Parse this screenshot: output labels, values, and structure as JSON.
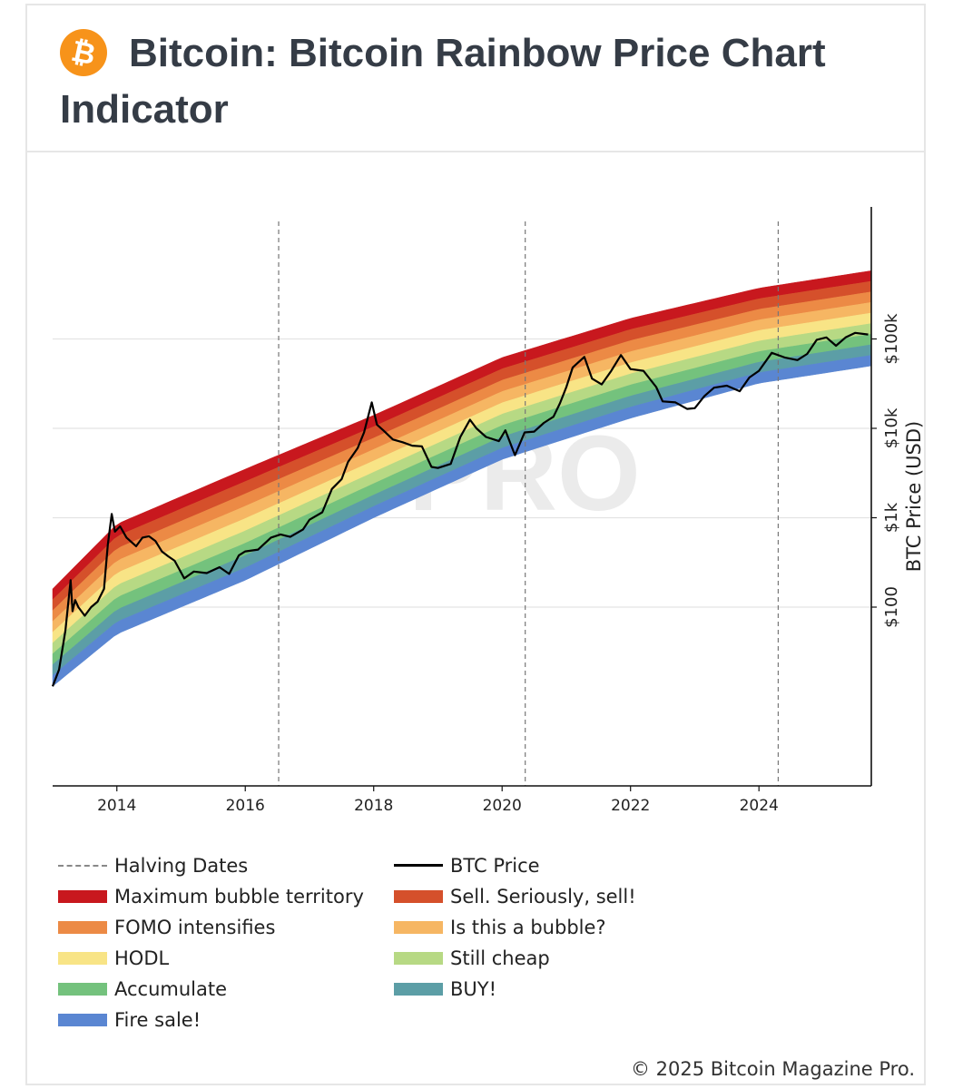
{
  "page_title": "Bitcoin: Bitcoin Rainbow Price Chart Indicator",
  "logo_icon": "bitcoin-logo-icon",
  "watermark": "PRO",
  "copyright": "© 2025 Bitcoin Magazine Pro.",
  "chart_data": {
    "type": "area",
    "title": "Bitcoin: Bitcoin Rainbow Price Chart Indicator",
    "xlabel": "",
    "ylabel": "BTC Price (USD)",
    "y_scale": "log",
    "xlim": [
      2013.0,
      2025.75
    ],
    "ylim": [
      1,
      3000000
    ],
    "x_ticks": [
      {
        "value": 2014,
        "label": "2014"
      },
      {
        "value": 2016,
        "label": "2016"
      },
      {
        "value": 2018,
        "label": "2018"
      },
      {
        "value": 2020,
        "label": "2020"
      },
      {
        "value": 2022,
        "label": "2022"
      },
      {
        "value": 2024,
        "label": "2024"
      }
    ],
    "y_ticks": [
      {
        "value": 100,
        "label": "$100"
      },
      {
        "value": 1000,
        "label": "$1k"
      },
      {
        "value": 10000,
        "label": "$10k"
      },
      {
        "value": 100000,
        "label": "$100k"
      }
    ],
    "grid": true,
    "legend_position": "bottom",
    "halving_dates": [
      2016.52,
      2020.36,
      2024.3
    ],
    "bands": [
      {
        "name": "Maximum bubble territory",
        "color": "#c8181e"
      },
      {
        "name": "Sell. Seriously, sell!",
        "color": "#d5502b"
      },
      {
        "name": "FOMO intensifies",
        "color": "#ec8a45"
      },
      {
        "name": "Is this a bubble?",
        "color": "#f6b663"
      },
      {
        "name": "HODL",
        "color": "#f8e486"
      },
      {
        "name": "Still cheap",
        "color": "#b7d984"
      },
      {
        "name": "Accumulate",
        "color": "#74c27d"
      },
      {
        "name": "BUY!",
        "color": "#5c9ea6"
      },
      {
        "name": "Fire sale!",
        "color": "#5a86d2"
      }
    ],
    "band_boundaries": {
      "x": [
        2013.0,
        2014.0,
        2016.0,
        2018.0,
        2020.0,
        2022.0,
        2024.0,
        2025.75
      ],
      "lower": [
        13,
        50,
        200,
        1000,
        4500,
        13000,
        32000,
        50000
      ],
      "upper": [
        160,
        850,
        3500,
        14000,
        62000,
        170000,
        370000,
        580000
      ]
    },
    "series": [
      {
        "name": "BTC Price",
        "color": "#000000",
        "points": [
          [
            2013.0,
            13
          ],
          [
            2013.1,
            20
          ],
          [
            2013.2,
            55
          ],
          [
            2013.28,
            200
          ],
          [
            2013.31,
            90
          ],
          [
            2013.35,
            120
          ],
          [
            2013.4,
            100
          ],
          [
            2013.5,
            80
          ],
          [
            2013.6,
            100
          ],
          [
            2013.7,
            115
          ],
          [
            2013.8,
            160
          ],
          [
            2013.86,
            500
          ],
          [
            2013.92,
            1100
          ],
          [
            2013.97,
            700
          ],
          [
            2014.05,
            800
          ],
          [
            2014.15,
            600
          ],
          [
            2014.3,
            480
          ],
          [
            2014.4,
            600
          ],
          [
            2014.5,
            620
          ],
          [
            2014.6,
            550
          ],
          [
            2014.7,
            420
          ],
          [
            2014.8,
            370
          ],
          [
            2014.9,
            330
          ],
          [
            2015.05,
            210
          ],
          [
            2015.2,
            250
          ],
          [
            2015.4,
            240
          ],
          [
            2015.6,
            280
          ],
          [
            2015.75,
            235
          ],
          [
            2015.9,
            380
          ],
          [
            2016.0,
            420
          ],
          [
            2016.2,
            440
          ],
          [
            2016.4,
            600
          ],
          [
            2016.55,
            650
          ],
          [
            2016.7,
            610
          ],
          [
            2016.9,
            740
          ],
          [
            2017.0,
            950
          ],
          [
            2017.2,
            1150
          ],
          [
            2017.35,
            2100
          ],
          [
            2017.5,
            2700
          ],
          [
            2017.6,
            4200
          ],
          [
            2017.75,
            6000
          ],
          [
            2017.85,
            9000
          ],
          [
            2017.97,
            19500
          ],
          [
            2018.05,
            11000
          ],
          [
            2018.15,
            9500
          ],
          [
            2018.3,
            7500
          ],
          [
            2018.45,
            7000
          ],
          [
            2018.6,
            6400
          ],
          [
            2018.75,
            6300
          ],
          [
            2018.9,
            3700
          ],
          [
            2019.0,
            3600
          ],
          [
            2019.2,
            4000
          ],
          [
            2019.35,
            8000
          ],
          [
            2019.5,
            12500
          ],
          [
            2019.6,
            10000
          ],
          [
            2019.75,
            8000
          ],
          [
            2019.95,
            7200
          ],
          [
            2020.05,
            9500
          ],
          [
            2020.2,
            5000
          ],
          [
            2020.35,
            9000
          ],
          [
            2020.5,
            9200
          ],
          [
            2020.65,
            11500
          ],
          [
            2020.8,
            13500
          ],
          [
            2020.9,
            19000
          ],
          [
            2021.0,
            29000
          ],
          [
            2021.1,
            48000
          ],
          [
            2021.28,
            63000
          ],
          [
            2021.4,
            36000
          ],
          [
            2021.55,
            31000
          ],
          [
            2021.7,
            44000
          ],
          [
            2021.85,
            66000
          ],
          [
            2022.0,
            46000
          ],
          [
            2022.2,
            44000
          ],
          [
            2022.4,
            29000
          ],
          [
            2022.5,
            20000
          ],
          [
            2022.7,
            19500
          ],
          [
            2022.88,
            16500
          ],
          [
            2023.0,
            16800
          ],
          [
            2023.15,
            23000
          ],
          [
            2023.3,
            28500
          ],
          [
            2023.5,
            30000
          ],
          [
            2023.7,
            26000
          ],
          [
            2023.85,
            37000
          ],
          [
            2024.0,
            44000
          ],
          [
            2024.2,
            70000
          ],
          [
            2024.4,
            62000
          ],
          [
            2024.6,
            58000
          ],
          [
            2024.75,
            68000
          ],
          [
            2024.9,
            98000
          ],
          [
            2025.05,
            104000
          ],
          [
            2025.2,
            84000
          ],
          [
            2025.35,
            104000
          ],
          [
            2025.5,
            117000
          ],
          [
            2025.7,
            112000
          ]
        ]
      }
    ]
  },
  "legend": {
    "items": [
      {
        "label": "Halving Dates",
        "kind": "dash",
        "color": "#888888"
      },
      {
        "label": "BTC Price",
        "kind": "line",
        "color": "#000000"
      },
      {
        "label": "Maximum bubble territory",
        "kind": "band",
        "color": "#c8181e"
      },
      {
        "label": "Sell. Seriously, sell!",
        "kind": "band",
        "color": "#d5502b"
      },
      {
        "label": "FOMO intensifies",
        "kind": "band",
        "color": "#ec8a45"
      },
      {
        "label": "Is this a bubble?",
        "kind": "band",
        "color": "#f6b663"
      },
      {
        "label": "HODL",
        "kind": "band",
        "color": "#f8e486"
      },
      {
        "label": "Still cheap",
        "kind": "band",
        "color": "#b7d984"
      },
      {
        "label": "Accumulate",
        "kind": "band",
        "color": "#74c27d"
      },
      {
        "label": "BUY!",
        "kind": "band",
        "color": "#5c9ea6"
      },
      {
        "label": "Fire sale!",
        "kind": "band",
        "color": "#5a86d2"
      }
    ]
  }
}
